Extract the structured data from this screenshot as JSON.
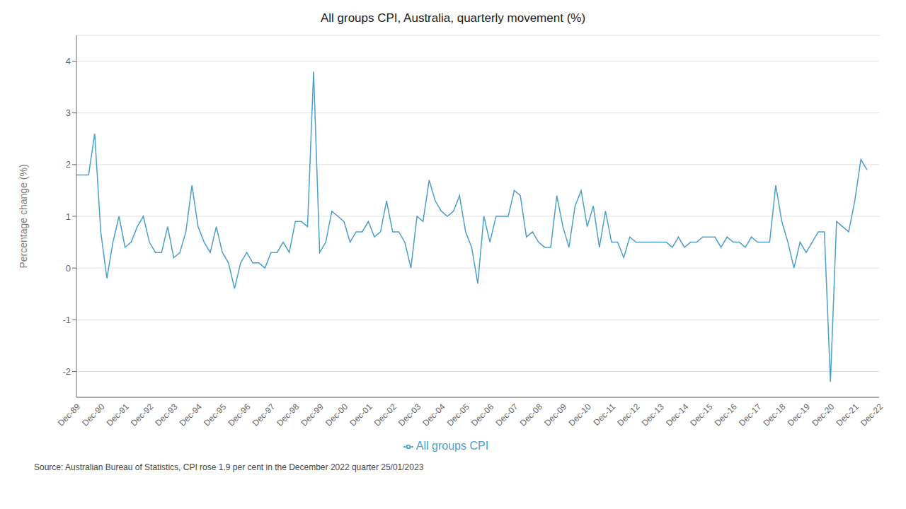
{
  "chart_data": {
    "type": "line",
    "title": "All groups CPI, Australia, quarterly movement (%)",
    "y_label": "Percentage change (%)",
    "annotations": [
      "Source:  Australian Bureau of Statistics, CPI rose 1.9 per cent in the December 2022 quarter 25/01/2023"
    ],
    "categories": [
      "Dec-89",
      null,
      null,
      null,
      "Dec-90",
      null,
      null,
      null,
      "Dec-91",
      null,
      null,
      null,
      "Dec-92",
      null,
      null,
      null,
      "Dec-93",
      null,
      null,
      null,
      "Dec-94",
      null,
      null,
      null,
      "Dec-95",
      null,
      null,
      null,
      "Dec-96",
      null,
      null,
      null,
      "Dec-97",
      null,
      null,
      null,
      "Dec-98",
      null,
      null,
      null,
      "Dec-99",
      null,
      null,
      null,
      "Dec-00",
      null,
      null,
      null,
      "Dec-01",
      null,
      null,
      null,
      "Dec-02",
      null,
      null,
      null,
      "Dec-03",
      null,
      null,
      null,
      "Dec-04",
      null,
      null,
      null,
      "Dec-05",
      null,
      null,
      null,
      "Dec-06",
      null,
      null,
      null,
      "Dec-07",
      null,
      null,
      null,
      "Dec-08",
      null,
      null,
      null,
      "Dec-09",
      null,
      null,
      null,
      "Dec-10",
      null,
      null,
      null,
      "Dec-11",
      null,
      null,
      null,
      "Dec-12",
      null,
      null,
      null,
      "Dec-13",
      null,
      null,
      null,
      "Dec-14",
      null,
      null,
      null,
      "Dec-15",
      null,
      null,
      null,
      "Dec-16",
      null,
      null,
      null,
      "Dec-17",
      null,
      null,
      null,
      "Dec-18",
      null,
      null,
      null,
      "Dec-19",
      null,
      null,
      null,
      "Dec-20",
      null,
      null,
      null,
      "Dec-21",
      null,
      null,
      null,
      "Dec-22"
    ],
    "series": [
      {
        "name": "All groups CPI",
        "color": "#4b9fca",
        "values": [
          1.8,
          1.8,
          1.8,
          2.6,
          0.7,
          -0.2,
          0.5,
          1.0,
          0.4,
          0.5,
          0.8,
          1.0,
          0.5,
          0.3,
          0.3,
          0.8,
          0.2,
          0.3,
          0.7,
          1.6,
          0.8,
          0.5,
          0.3,
          0.8,
          0.3,
          0.1,
          -0.4,
          0.1,
          0.3,
          0.1,
          0.1,
          0.0,
          0.3,
          0.3,
          0.5,
          0.3,
          0.9,
          0.9,
          0.8,
          3.8,
          0.3,
          0.5,
          1.1,
          1.0,
          0.9,
          0.5,
          0.7,
          0.7,
          0.9,
          0.6,
          0.7,
          1.3,
          0.7,
          0.7,
          0.5,
          0.0,
          1.0,
          0.9,
          1.7,
          1.3,
          1.1,
          1.0,
          1.1,
          1.4,
          0.7,
          0.4,
          -0.3,
          1.0,
          0.5,
          1.0,
          1.0,
          1.0,
          1.5,
          1.4,
          0.6,
          0.7,
          0.5,
          0.4,
          0.4,
          1.4,
          0.8,
          0.4,
          1.2,
          1.5,
          0.8,
          1.2,
          0.4,
          1.1,
          0.5,
          0.5,
          0.2,
          0.6,
          0.5,
          0.5,
          0.5,
          0.5,
          0.5,
          0.5,
          0.4,
          0.6,
          0.4,
          0.5,
          0.5,
          0.6,
          0.6,
          0.6,
          0.4,
          0.6,
          0.5,
          0.5,
          0.4,
          0.6,
          0.5,
          0.5,
          0.5,
          1.6,
          0.9,
          0.5,
          0.0,
          0.5,
          0.3,
          0.5,
          0.7,
          0.7,
          -2.2,
          0.9,
          0.8,
          0.7,
          1.3,
          2.1,
          1.9,
          null,
          null
        ]
      }
    ],
    "ylim": [
      -2.5,
      4.5
    ],
    "yticks": [
      -2,
      -1,
      0,
      1,
      2,
      3,
      4
    ],
    "grid": true,
    "legend": "bottom"
  }
}
